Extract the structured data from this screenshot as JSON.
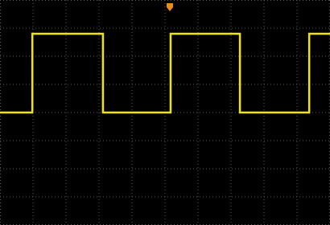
{
  "chart_data": {
    "type": "line",
    "x": [
      0,
      0.98,
      0.98,
      3.12,
      3.12,
      5.17,
      5.17,
      7.27,
      7.27,
      9.37,
      9.37,
      10
    ],
    "series": [
      {
        "color": "#f2e600",
        "values": [
          0,
          0,
          2.8,
          2.8,
          0,
          0,
          2.8,
          2.8,
          0,
          0,
          2.8,
          2.8
        ]
      }
    ],
    "xlim": [
      0,
      10
    ],
    "ylim": [
      -4,
      4
    ],
    "xticks": [
      0,
      1,
      2,
      3,
      4,
      5,
      6,
      7,
      8,
      9,
      10
    ],
    "yticks": [
      -4,
      -3,
      -2,
      -1,
      0,
      1,
      2,
      3,
      4
    ],
    "grid": true,
    "background": "#000000",
    "grid_color": "#5a5a5a"
  }
}
